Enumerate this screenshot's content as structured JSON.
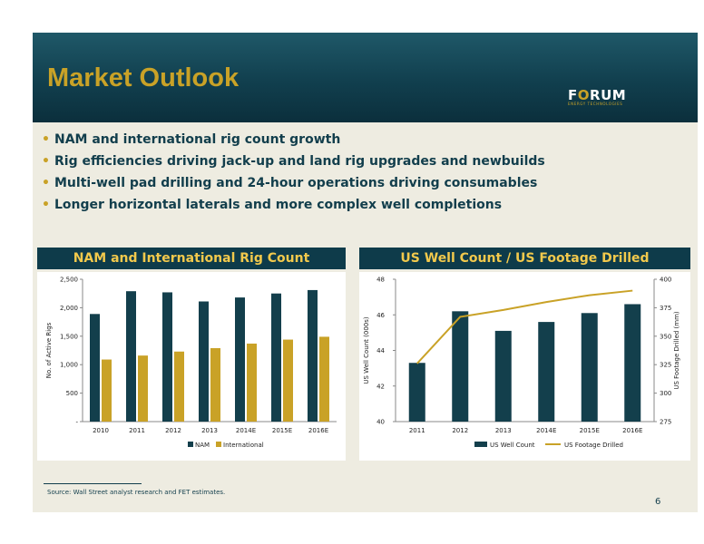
{
  "header": {
    "title": "Market Outlook"
  },
  "logo": {
    "name": "FORUM",
    "tagline": "ENERGY TECHNOLOGIES"
  },
  "bullets": [
    "NAM and international rig count growth",
    "Rig efficiencies driving jack-up and land rig upgrades and newbuilds",
    "Multi-well pad drilling and 24-hour operations driving consumables",
    "Longer horizontal laterals and more complex well completions"
  ],
  "chart_data": [
    {
      "type": "bar",
      "title": "NAM and International Rig Count",
      "categories": [
        "2010",
        "2011",
        "2012",
        "2013",
        "2014E",
        "2015E",
        "2016E"
      ],
      "series": [
        {
          "name": "NAM",
          "values": [
            1890,
            2290,
            2270,
            2110,
            2180,
            2250,
            2310
          ],
          "color": "#133f4c"
        },
        {
          "name": "International",
          "values": [
            1090,
            1160,
            1230,
            1290,
            1370,
            1440,
            1490
          ],
          "color": "#c9a227"
        }
      ],
      "ylabel": "No. of Active Rigs",
      "ylim": [
        0,
        2500
      ],
      "yticks": [
        "-",
        "500",
        "1,000",
        "1,500",
        "2,000",
        "2,500"
      ],
      "legend": "bottom",
      "grid": false
    },
    {
      "type": "bar+line",
      "title": "US Well Count / US Footage Drilled",
      "categories": [
        "2011",
        "2012",
        "2013",
        "2014E",
        "2015E",
        "2016E"
      ],
      "series": [
        {
          "name": "US Well Count",
          "type": "bar",
          "axis": "left",
          "values": [
            43.3,
            46.2,
            45.1,
            45.6,
            46.1,
            46.6
          ],
          "color": "#133f4c"
        },
        {
          "name": "US Footage Drilled",
          "type": "line",
          "axis": "right",
          "values": [
            326,
            367,
            373,
            380,
            386,
            390
          ],
          "color": "#c9a227"
        }
      ],
      "ylabel": "US Well Count (000s)",
      "ylabel_right": "US Footage Drilled (mm)",
      "ylim": [
        40,
        48
      ],
      "ylim_right": [
        275,
        400
      ],
      "yticks": [
        "40",
        "42",
        "44",
        "46",
        "48"
      ],
      "yticks_right": [
        "275",
        "300",
        "325",
        "350",
        "375",
        "400"
      ],
      "legend": "bottom",
      "grid": false
    }
  ],
  "footer": {
    "source": "Source: Wall Street analyst research and FET estimates.",
    "page": "6"
  }
}
